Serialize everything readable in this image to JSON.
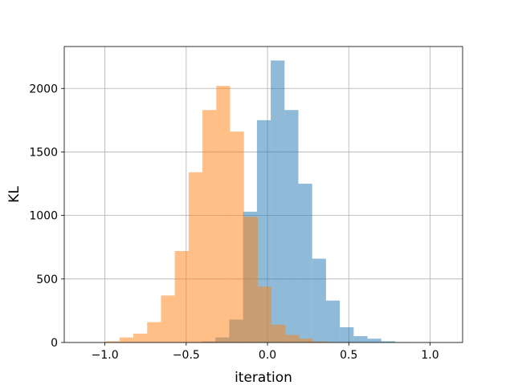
{
  "chart_data": {
    "type": "bar",
    "subtype": "overlapping-histogram",
    "title": "",
    "xlabel": "iteration",
    "ylabel": "KL",
    "xlim": [
      -1.25,
      1.2
    ],
    "ylim": [
      0,
      2330
    ],
    "xticks": [
      -1.0,
      -0.5,
      0.0,
      0.5,
      1.0
    ],
    "xtick_labels": [
      "−1.0",
      "−0.5",
      "0.0",
      "0.5",
      "1.0"
    ],
    "yticks": [
      0,
      500,
      1000,
      1500,
      2000
    ],
    "ytick_labels": [
      "0",
      "500",
      "1000",
      "1500",
      "2000"
    ],
    "grid": true,
    "legend": false,
    "bar_alpha": 0.5,
    "series": [
      {
        "color": "#1f77b4",
        "bin_edges": [
          -1.17,
          -1.085,
          -1.0,
          -0.915,
          -0.83,
          -0.745,
          -0.66,
          -0.575,
          -0.49,
          -0.405,
          -0.32,
          -0.235,
          -0.15,
          -0.065,
          0.02,
          0.105,
          0.19,
          0.275,
          0.36,
          0.445,
          0.53,
          0.615,
          0.7,
          0.785,
          0.87,
          0.955,
          1.04,
          1.125
        ],
        "counts": [
          0,
          0,
          0,
          0,
          0,
          0,
          0,
          0,
          1,
          8,
          40,
          180,
          1030,
          1750,
          2220,
          1830,
          1250,
          660,
          330,
          120,
          50,
          30,
          10,
          3,
          1,
          0,
          0
        ]
      },
      {
        "color": "#ff7f0e",
        "bin_edges": [
          -1.08,
          -0.995,
          -0.91,
          -0.825,
          -0.74,
          -0.655,
          -0.57,
          -0.485,
          -0.4,
          -0.315,
          -0.23,
          -0.145,
          -0.06,
          0.025,
          0.11,
          0.195,
          0.28,
          0.365,
          0.45,
          0.535,
          0.62
        ],
        "counts": [
          2,
          10,
          40,
          70,
          160,
          370,
          720,
          1340,
          1830,
          2020,
          1660,
          990,
          440,
          140,
          60,
          30,
          8,
          3,
          1,
          0
        ]
      }
    ]
  }
}
